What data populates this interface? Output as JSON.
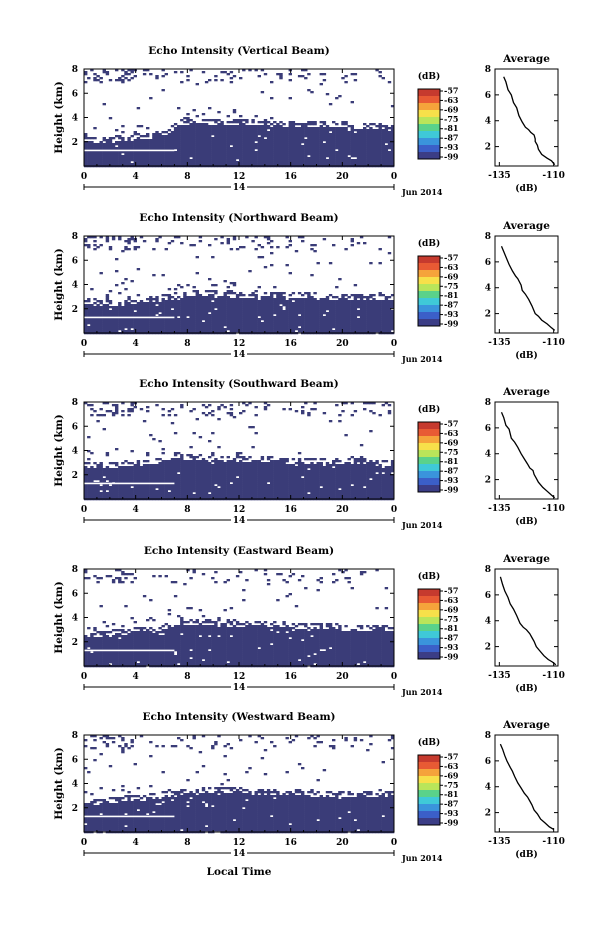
{
  "figure": {
    "date_label": "Jun 2014",
    "xlabel": "Local Time",
    "colors": {
      "echo": "#3a3c78",
      "background": "#ffffff"
    }
  },
  "colorbar": {
    "unit": "(dB)",
    "ticks": [
      "-57",
      "-63",
      "-69",
      "-75",
      "-81",
      "-87",
      "-93",
      "-99"
    ],
    "colors": [
      "#c63a2e",
      "#e85a34",
      "#f5a33b",
      "#f7e04a",
      "#b9e55a",
      "#5ad28a",
      "#3fc9d8",
      "#3a94dc",
      "#3b5fc8",
      "#3b3d86"
    ]
  },
  "chart_data": [
    {
      "type": "heatmap",
      "title": "Echo Intensity (Vertical Beam)",
      "ylabel": "Height (km)",
      "x_ticks": [
        "0",
        "4",
        "8",
        "12",
        "16",
        "20",
        "0"
      ],
      "x_day": "14",
      "y_ticks": [
        "8",
        "6",
        "4",
        "2"
      ],
      "xlim": [
        0,
        24
      ],
      "ylim": [
        0,
        8
      ],
      "echo_top_km": [
        [
          0,
          2.0
        ],
        [
          2,
          2.1
        ],
        [
          4,
          2.3
        ],
        [
          6,
          2.5
        ],
        [
          7,
          3.2
        ],
        [
          8,
          3.5
        ],
        [
          10,
          3.6
        ],
        [
          12,
          3.5
        ],
        [
          16,
          3.4
        ],
        [
          20,
          3.3
        ],
        [
          24,
          3.1
        ]
      ],
      "profile": {
        "title": "Average",
        "xlabel": "(dB)",
        "x_ticks": [
          "-135",
          "-110"
        ],
        "y_ticks": [
          "8",
          "6",
          "4",
          "2"
        ],
        "xlim": [
          -137,
          -108
        ],
        "ylim": [
          0.5,
          8
        ],
        "points": [
          [
            -133,
            7.4
          ],
          [
            -132,
            7.0
          ],
          [
            -131,
            6.4
          ],
          [
            -129.5,
            6.0
          ],
          [
            -128.5,
            5.4
          ],
          [
            -127,
            5.0
          ],
          [
            -126,
            4.4
          ],
          [
            -124.5,
            3.9
          ],
          [
            -123,
            3.5
          ],
          [
            -121.5,
            3.3
          ],
          [
            -120.5,
            3.1
          ],
          [
            -119,
            2.9
          ],
          [
            -118.5,
            2.6
          ],
          [
            -118.5,
            2.4
          ],
          [
            -117.5,
            2.1
          ],
          [
            -117,
            1.8
          ],
          [
            -115.5,
            1.4
          ],
          [
            -113,
            1.1
          ],
          [
            -111,
            0.9
          ],
          [
            -109.5,
            0.6
          ]
        ]
      }
    },
    {
      "type": "heatmap",
      "title": "Echo Intensity (Northward Beam)",
      "ylabel": "Height (km)",
      "x_ticks": [
        "0",
        "4",
        "8",
        "12",
        "16",
        "20",
        "0"
      ],
      "x_day": "14",
      "y_ticks": [
        "8",
        "6",
        "4",
        "2"
      ],
      "xlim": [
        0,
        24
      ],
      "ylim": [
        0,
        8
      ],
      "echo_top_km": [
        [
          0,
          2.5
        ],
        [
          2,
          2.4
        ],
        [
          4,
          2.6
        ],
        [
          6,
          2.8
        ],
        [
          8,
          3.1
        ],
        [
          10,
          3.3
        ],
        [
          12,
          3.0
        ],
        [
          16,
          3.0
        ],
        [
          20,
          2.9
        ],
        [
          24,
          2.9
        ]
      ],
      "profile": {
        "title": "Average",
        "xlabel": "(dB)",
        "x_ticks": [
          "-135",
          "-110"
        ],
        "y_ticks": [
          "8",
          "6",
          "4",
          "2"
        ],
        "xlim": [
          -137,
          -108
        ],
        "ylim": [
          0.5,
          8
        ],
        "points": [
          [
            -134,
            7.2
          ],
          [
            -133,
            6.8
          ],
          [
            -131.5,
            6.2
          ],
          [
            -130.5,
            5.8
          ],
          [
            -129,
            5.3
          ],
          [
            -127.5,
            4.9
          ],
          [
            -126.5,
            4.7
          ],
          [
            -125,
            4.2
          ],
          [
            -124.5,
            3.8
          ],
          [
            -123,
            3.5
          ],
          [
            -121.5,
            3.1
          ],
          [
            -120,
            2.6
          ],
          [
            -119,
            2.2
          ],
          [
            -118.5,
            2.0
          ],
          [
            -117,
            1.8
          ],
          [
            -115.5,
            1.5
          ],
          [
            -113,
            1.2
          ],
          [
            -111,
            0.9
          ],
          [
            -109.5,
            0.7
          ]
        ]
      }
    },
    {
      "type": "heatmap",
      "title": "Echo Intensity (Southward Beam)",
      "ylabel": "Height (km)",
      "x_ticks": [
        "0",
        "4",
        "8",
        "12",
        "16",
        "20",
        "0"
      ],
      "x_day": "14",
      "y_ticks": [
        "8",
        "6",
        "4",
        "2"
      ],
      "xlim": [
        0,
        24
      ],
      "ylim": [
        0,
        8
      ],
      "echo_top_km": [
        [
          0,
          2.8
        ],
        [
          2,
          2.7
        ],
        [
          4,
          2.9
        ],
        [
          6,
          3.1
        ],
        [
          7,
          3.6
        ],
        [
          8,
          3.4
        ],
        [
          10,
          3.1
        ],
        [
          12,
          3.2
        ],
        [
          16,
          3.1
        ],
        [
          20,
          3.0
        ],
        [
          24,
          2.9
        ]
      ],
      "profile": {
        "title": "Average",
        "xlabel": "(dB)",
        "x_ticks": [
          "-135",
          "-110"
        ],
        "y_ticks": [
          "8",
          "6",
          "4",
          "2"
        ],
        "xlim": [
          -137,
          -108
        ],
        "ylim": [
          0.5,
          8
        ],
        "points": [
          [
            -134,
            7.2
          ],
          [
            -133,
            6.8
          ],
          [
            -132,
            6.2
          ],
          [
            -130.5,
            5.9
          ],
          [
            -129.5,
            5.2
          ],
          [
            -128,
            4.9
          ],
          [
            -126.5,
            4.5
          ],
          [
            -125,
            4.0
          ],
          [
            -123.5,
            3.6
          ],
          [
            -122,
            3.2
          ],
          [
            -121,
            2.9
          ],
          [
            -119.5,
            2.7
          ],
          [
            -119,
            2.4
          ],
          [
            -118,
            2.1
          ],
          [
            -117,
            1.8
          ],
          [
            -115,
            1.4
          ],
          [
            -113,
            1.1
          ],
          [
            -111,
            0.8
          ],
          [
            -109.5,
            0.6
          ]
        ]
      }
    },
    {
      "type": "heatmap",
      "title": "Echo Intensity (Eastward Beam)",
      "ylabel": "Height (km)",
      "x_ticks": [
        "0",
        "4",
        "8",
        "12",
        "16",
        "20",
        "0"
      ],
      "x_day": "14",
      "y_ticks": [
        "8",
        "6",
        "4",
        "2"
      ],
      "xlim": [
        0,
        24
      ],
      "ylim": [
        0,
        8
      ],
      "echo_top_km": [
        [
          0,
          2.5
        ],
        [
          2,
          2.6
        ],
        [
          4,
          2.8
        ],
        [
          6,
          3.0
        ],
        [
          8,
          3.6
        ],
        [
          10,
          3.5
        ],
        [
          12,
          3.4
        ],
        [
          16,
          3.3
        ],
        [
          20,
          3.1
        ],
        [
          24,
          3.0
        ]
      ],
      "profile": {
        "title": "Average",
        "xlabel": "(dB)",
        "x_ticks": [
          "-135",
          "-110"
        ],
        "y_ticks": [
          "8",
          "6",
          "4",
          "2"
        ],
        "xlim": [
          -137,
          -108
        ],
        "ylim": [
          0.5,
          8
        ],
        "points": [
          [
            -134.5,
            7.4
          ],
          [
            -133.5,
            6.8
          ],
          [
            -132.5,
            6.3
          ],
          [
            -131,
            5.8
          ],
          [
            -130,
            5.3
          ],
          [
            -128.5,
            4.9
          ],
          [
            -127,
            4.4
          ],
          [
            -125.5,
            3.8
          ],
          [
            -124,
            3.5
          ],
          [
            -122.5,
            3.3
          ],
          [
            -121,
            3.0
          ],
          [
            -120,
            2.7
          ],
          [
            -119,
            2.4
          ],
          [
            -118,
            2.0
          ],
          [
            -116.5,
            1.7
          ],
          [
            -114.5,
            1.3
          ],
          [
            -112.5,
            1.0
          ],
          [
            -110.5,
            0.8
          ],
          [
            -109,
            0.6
          ]
        ]
      }
    },
    {
      "type": "heatmap",
      "title": "Echo Intensity (Westward Beam)",
      "ylabel": "Height (km)",
      "x_ticks": [
        "0",
        "4",
        "8",
        "12",
        "16",
        "20",
        "0"
      ],
      "x_day": "14",
      "y_ticks": [
        "8",
        "6",
        "4",
        "2"
      ],
      "xlim": [
        0,
        24
      ],
      "ylim": [
        0,
        8
      ],
      "echo_top_km": [
        [
          0,
          2.4
        ],
        [
          2,
          2.5
        ],
        [
          4,
          2.7
        ],
        [
          6,
          2.9
        ],
        [
          8,
          3.2
        ],
        [
          10,
          3.4
        ],
        [
          12,
          3.3
        ],
        [
          16,
          3.2
        ],
        [
          20,
          3.0
        ],
        [
          24,
          3.0
        ]
      ],
      "profile": {
        "title": "Average",
        "xlabel": "(dB)",
        "x_ticks": [
          "-135",
          "-110"
        ],
        "y_ticks": [
          "8",
          "6",
          "4",
          "2"
        ],
        "xlim": [
          -137,
          -108
        ],
        "ylim": [
          0.5,
          8
        ],
        "points": [
          [
            -134.5,
            7.3
          ],
          [
            -133.5,
            6.9
          ],
          [
            -132.5,
            6.4
          ],
          [
            -131.5,
            6.0
          ],
          [
            -130,
            5.5
          ],
          [
            -129,
            5.2
          ],
          [
            -128,
            4.8
          ],
          [
            -126.5,
            4.3
          ],
          [
            -125,
            3.9
          ],
          [
            -123.5,
            3.5
          ],
          [
            -122,
            3.2
          ],
          [
            -121,
            2.9
          ],
          [
            -120,
            2.6
          ],
          [
            -119,
            2.2
          ],
          [
            -117.5,
            1.9
          ],
          [
            -116,
            1.5
          ],
          [
            -114,
            1.2
          ],
          [
            -112,
            0.9
          ],
          [
            -110,
            0.7
          ]
        ]
      }
    }
  ]
}
